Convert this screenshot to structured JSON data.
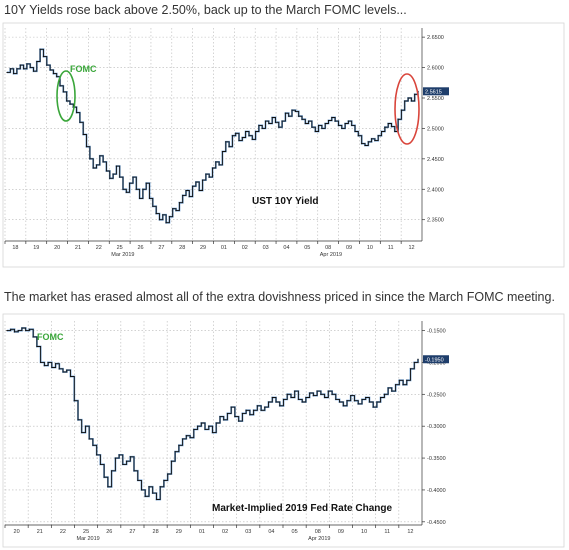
{
  "captions": {
    "top": "10Y Yields rose back above 2.50%, back up to the March FOMC levels...",
    "bottom": "The market has erased almost all of the extra dovishness priced in since the March FOMC meeting."
  },
  "colors": {
    "series": "#111111",
    "series_highlight": "#4a86c5",
    "fomc_text": "#3aa63a",
    "green_circle": "#3aa63a",
    "red_circle": "#d9453b",
    "last_value_box": "#1f3e6b"
  },
  "chart_data": [
    {
      "type": "line",
      "title": "UST 10Y Yield",
      "annotation": "FOMC",
      "last_value_label": "2.5615",
      "y_tick_labels": [
        "2.6500",
        "2.6000",
        "2.5500",
        "2.5000",
        "2.4500",
        "2.4000",
        "2.3500"
      ],
      "y_ticks": [
        2.65,
        2.6,
        2.55,
        2.5,
        2.45,
        2.4,
        2.35
      ],
      "ylim": [
        2.315,
        2.665
      ],
      "x_day_labels": [
        "18",
        "19",
        "20",
        "21",
        "22",
        "25",
        "26",
        "27",
        "28",
        "29",
        "01",
        "02",
        "03",
        "04",
        "05",
        "08",
        "09",
        "10",
        "11",
        "12"
      ],
      "month_labels": [
        {
          "text": "Mar 2019",
          "day_index": 5
        },
        {
          "text": "Apr 2019",
          "day_index": 15
        }
      ],
      "grid": true,
      "axis_side": "right",
      "series": [
        {
          "values": [
            2.592,
            2.598,
            2.59,
            2.598,
            2.604,
            2.598,
            2.606,
            2.6,
            2.594,
            2.61,
            2.63,
            2.618,
            2.604,
            2.596,
            2.59,
            2.585,
            2.57,
            2.56,
            2.545,
            2.54,
            2.535,
            2.526,
            2.51,
            2.49,
            2.47,
            2.45,
            2.435,
            2.44,
            2.455,
            2.445,
            2.43,
            2.418,
            2.425,
            2.438,
            2.42,
            2.4,
            2.395,
            2.41,
            2.42,
            2.4,
            2.385,
            2.4,
            2.41,
            2.385,
            2.372,
            2.36,
            2.35,
            2.358,
            2.345,
            2.355,
            2.368,
            2.365,
            2.378,
            2.39,
            2.398,
            2.388,
            2.405,
            2.412,
            2.398,
            2.415,
            2.425,
            2.42,
            2.435,
            2.445,
            2.44,
            2.462,
            2.478,
            2.47,
            2.488,
            2.492,
            2.48,
            2.485,
            2.495,
            2.488,
            2.482,
            2.495,
            2.505,
            2.5,
            2.512,
            2.508,
            2.518,
            2.51,
            2.502,
            2.512,
            2.525,
            2.52,
            2.53,
            2.528,
            2.52,
            2.515,
            2.508,
            2.512,
            2.502,
            2.495,
            2.505,
            2.5,
            2.508,
            2.513,
            2.518,
            2.512,
            2.505,
            2.5,
            2.508,
            2.512,
            2.505,
            2.495,
            2.488,
            2.475,
            2.472,
            2.478,
            2.483,
            2.48,
            2.488,
            2.495,
            2.502,
            2.508,
            2.503,
            2.495,
            2.515,
            2.53,
            2.545,
            2.55,
            2.545,
            2.556,
            2.561
          ]
        }
      ]
    },
    {
      "type": "line",
      "title": "Market-Implied 2019 Fed Rate Change",
      "annotation": "FOMC",
      "last_value_label": "-0.1950",
      "y_tick_labels": [
        "-0.1500",
        "-0.2000",
        "-0.2500",
        "-0.3000",
        "-0.3500",
        "-0.4000",
        "-0.4500"
      ],
      "y_ticks": [
        -0.15,
        -0.2,
        -0.25,
        -0.3,
        -0.35,
        -0.4,
        -0.45
      ],
      "ylim": [
        -0.455,
        -0.135
      ],
      "x_day_labels": [
        "20",
        "21",
        "22",
        "25",
        "26",
        "27",
        "28",
        "29",
        "01",
        "02",
        "03",
        "04",
        "05",
        "08",
        "09",
        "10",
        "11",
        "12"
      ],
      "month_labels": [
        {
          "text": "Mar 2019",
          "day_index": 3
        },
        {
          "text": "Apr 2019",
          "day_index": 13
        }
      ],
      "grid": true,
      "axis_side": "right",
      "series": [
        {
          "values": [
            -0.15,
            -0.148,
            -0.152,
            -0.15,
            -0.146,
            -0.15,
            -0.148,
            -0.16,
            -0.175,
            -0.2,
            -0.205,
            -0.2,
            -0.208,
            -0.202,
            -0.21,
            -0.215,
            -0.212,
            -0.222,
            -0.26,
            -0.29,
            -0.31,
            -0.3,
            -0.32,
            -0.33,
            -0.345,
            -0.36,
            -0.38,
            -0.395,
            -0.37,
            -0.35,
            -0.345,
            -0.36,
            -0.355,
            -0.348,
            -0.37,
            -0.385,
            -0.4,
            -0.41,
            -0.395,
            -0.405,
            -0.415,
            -0.395,
            -0.385,
            -0.375,
            -0.355,
            -0.34,
            -0.33,
            -0.32,
            -0.315,
            -0.318,
            -0.305,
            -0.3,
            -0.295,
            -0.305,
            -0.3,
            -0.31,
            -0.295,
            -0.285,
            -0.29,
            -0.28,
            -0.27,
            -0.285,
            -0.292,
            -0.28,
            -0.275,
            -0.282,
            -0.275,
            -0.268,
            -0.275,
            -0.27,
            -0.262,
            -0.255,
            -0.262,
            -0.268,
            -0.258,
            -0.25,
            -0.255,
            -0.245,
            -0.258,
            -0.262,
            -0.255,
            -0.248,
            -0.252,
            -0.245,
            -0.25,
            -0.255,
            -0.245,
            -0.25,
            -0.258,
            -0.262,
            -0.268,
            -0.26,
            -0.252,
            -0.26,
            -0.265,
            -0.258,
            -0.255,
            -0.262,
            -0.27,
            -0.262,
            -0.255,
            -0.25,
            -0.24,
            -0.245,
            -0.235,
            -0.228,
            -0.235,
            -0.228,
            -0.21,
            -0.2,
            -0.195
          ]
        }
      ]
    }
  ]
}
